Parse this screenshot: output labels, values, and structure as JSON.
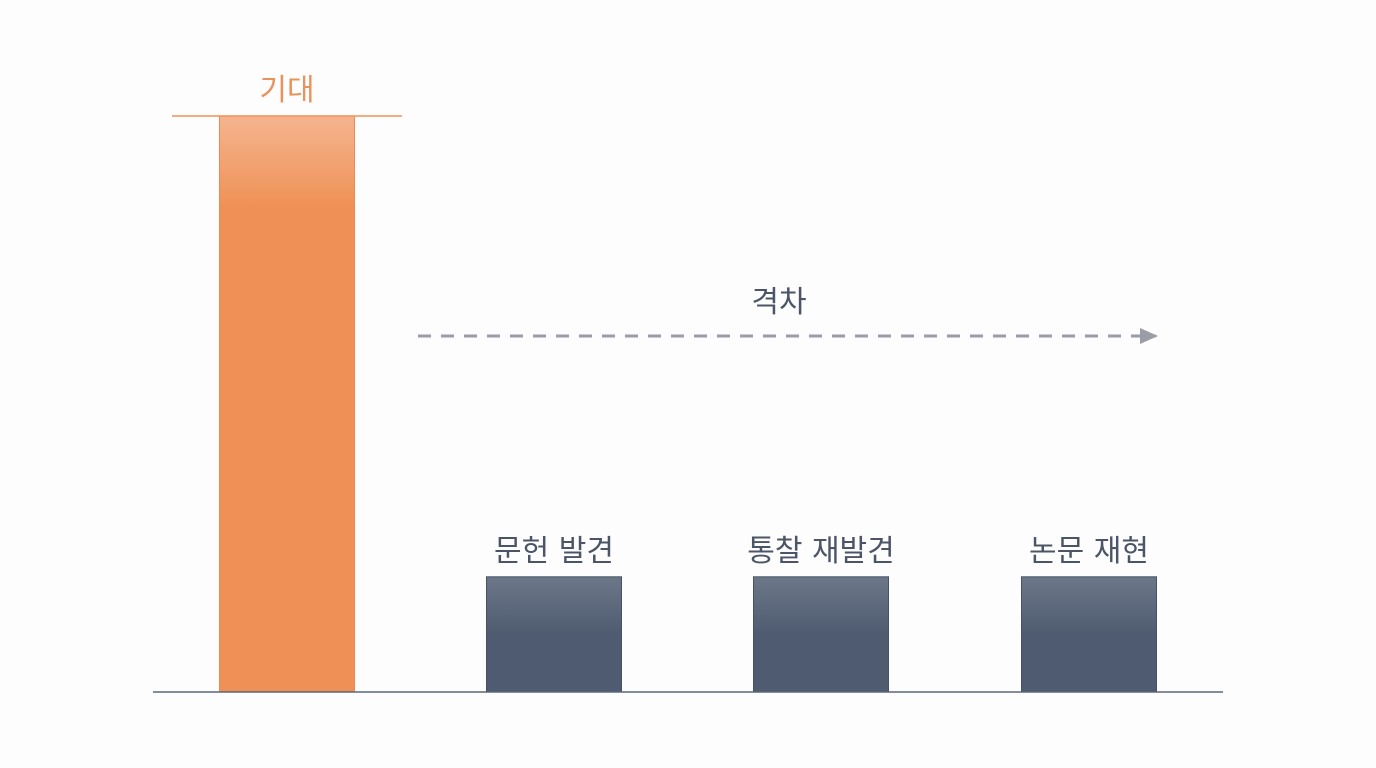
{
  "chart_data": {
    "type": "bar",
    "categories": [
      "기대",
      "문헌 발견",
      "통찰 재발견",
      "논문 재현"
    ],
    "values": [
      100,
      20,
      20,
      20
    ],
    "ylim": [
      0,
      100
    ],
    "grid": false,
    "legend": "none",
    "annotation": {
      "label": "격차",
      "style": "dashed-arrow"
    },
    "colors": {
      "expectation_bar": "#ef9156",
      "expectation_bar_top": "#f5b48e",
      "expectation_text": "#e8935c",
      "reality_bar": "#4f5b70",
      "reality_bar_top": "#6c7789",
      "baseline": "#5b6678",
      "gap_arrow": "#9a9ca6"
    }
  }
}
